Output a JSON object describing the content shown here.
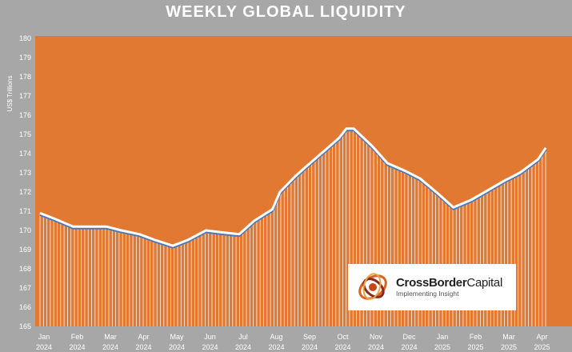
{
  "title": "WEEKLY GLOBAL LIQUIDITY",
  "logo": {
    "name_bold": "CrossBorder",
    "name_regular": "Capital",
    "tagline": "Implementing Insight"
  },
  "colors": {
    "background": "#a7a7a7",
    "plot_area": "#e27933",
    "line_main": "#ffffff",
    "line_shadow": "#4a78b8"
  },
  "chart_data": {
    "type": "area",
    "title": "WEEKLY GLOBAL LIQUIDITY",
    "xlabel": "",
    "ylabel": "US$ Trillions",
    "ylim": [
      165,
      180
    ],
    "yticks": [
      165,
      166,
      167,
      168,
      169,
      170,
      171,
      172,
      173,
      174,
      175,
      176,
      177,
      178,
      179,
      180
    ],
    "xticks": [
      {
        "month": "Jan",
        "year": "2024"
      },
      {
        "month": "Feb",
        "year": "2024"
      },
      {
        "month": "Mar",
        "year": "2024"
      },
      {
        "month": "Apr",
        "year": "2024"
      },
      {
        "month": "May",
        "year": "2024"
      },
      {
        "month": "Jun",
        "year": "2024"
      },
      {
        "month": "Jul",
        "year": "2024"
      },
      {
        "month": "Aug",
        "year": "2024"
      },
      {
        "month": "Sep",
        "year": "2024"
      },
      {
        "month": "Oct",
        "year": "2024"
      },
      {
        "month": "Nov",
        "year": "2024"
      },
      {
        "month": "Dec",
        "year": "2024"
      },
      {
        "month": "Jan",
        "year": "2025"
      },
      {
        "month": "Feb",
        "year": "2025"
      },
      {
        "month": "Mar",
        "year": "2025"
      },
      {
        "month": "Apr",
        "year": "2025"
      }
    ],
    "grid": false,
    "series": [
      {
        "points": [
          {
            "x": "2024-01-01",
            "y": 170.9
          },
          {
            "x": "2024-01-15",
            "y": 170.6
          },
          {
            "x": "2024-02-01",
            "y": 170.2
          },
          {
            "x": "2024-02-15",
            "y": 170.2
          },
          {
            "x": "2024-03-01",
            "y": 170.2
          },
          {
            "x": "2024-03-15",
            "y": 170.0
          },
          {
            "x": "2024-04-01",
            "y": 169.8
          },
          {
            "x": "2024-04-15",
            "y": 169.5
          },
          {
            "x": "2024-05-01",
            "y": 169.2
          },
          {
            "x": "2024-05-15",
            "y": 169.5
          },
          {
            "x": "2024-06-01",
            "y": 170.0
          },
          {
            "x": "2024-06-15",
            "y": 169.9
          },
          {
            "x": "2024-07-01",
            "y": 169.8
          },
          {
            "x": "2024-07-15",
            "y": 170.5
          },
          {
            "x": "2024-08-01",
            "y": 171.1
          },
          {
            "x": "2024-08-08",
            "y": 172.0
          },
          {
            "x": "2024-08-22",
            "y": 172.8
          },
          {
            "x": "2024-09-01",
            "y": 173.3
          },
          {
            "x": "2024-09-15",
            "y": 174.0
          },
          {
            "x": "2024-10-01",
            "y": 174.8
          },
          {
            "x": "2024-10-08",
            "y": 175.3
          },
          {
            "x": "2024-10-15",
            "y": 175.3
          },
          {
            "x": "2024-11-01",
            "y": 174.4
          },
          {
            "x": "2024-11-15",
            "y": 173.5
          },
          {
            "x": "2024-12-01",
            "y": 173.1
          },
          {
            "x": "2024-12-15",
            "y": 172.7
          },
          {
            "x": "2025-01-01",
            "y": 171.9
          },
          {
            "x": "2025-01-15",
            "y": 171.2
          },
          {
            "x": "2025-02-01",
            "y": 171.6
          },
          {
            "x": "2025-02-15",
            "y": 172.1
          },
          {
            "x": "2025-03-01",
            "y": 172.6
          },
          {
            "x": "2025-03-15",
            "y": 173.0
          },
          {
            "x": "2025-04-01",
            "y": 173.7
          },
          {
            "x": "2025-04-08",
            "y": 174.3
          }
        ]
      }
    ]
  }
}
